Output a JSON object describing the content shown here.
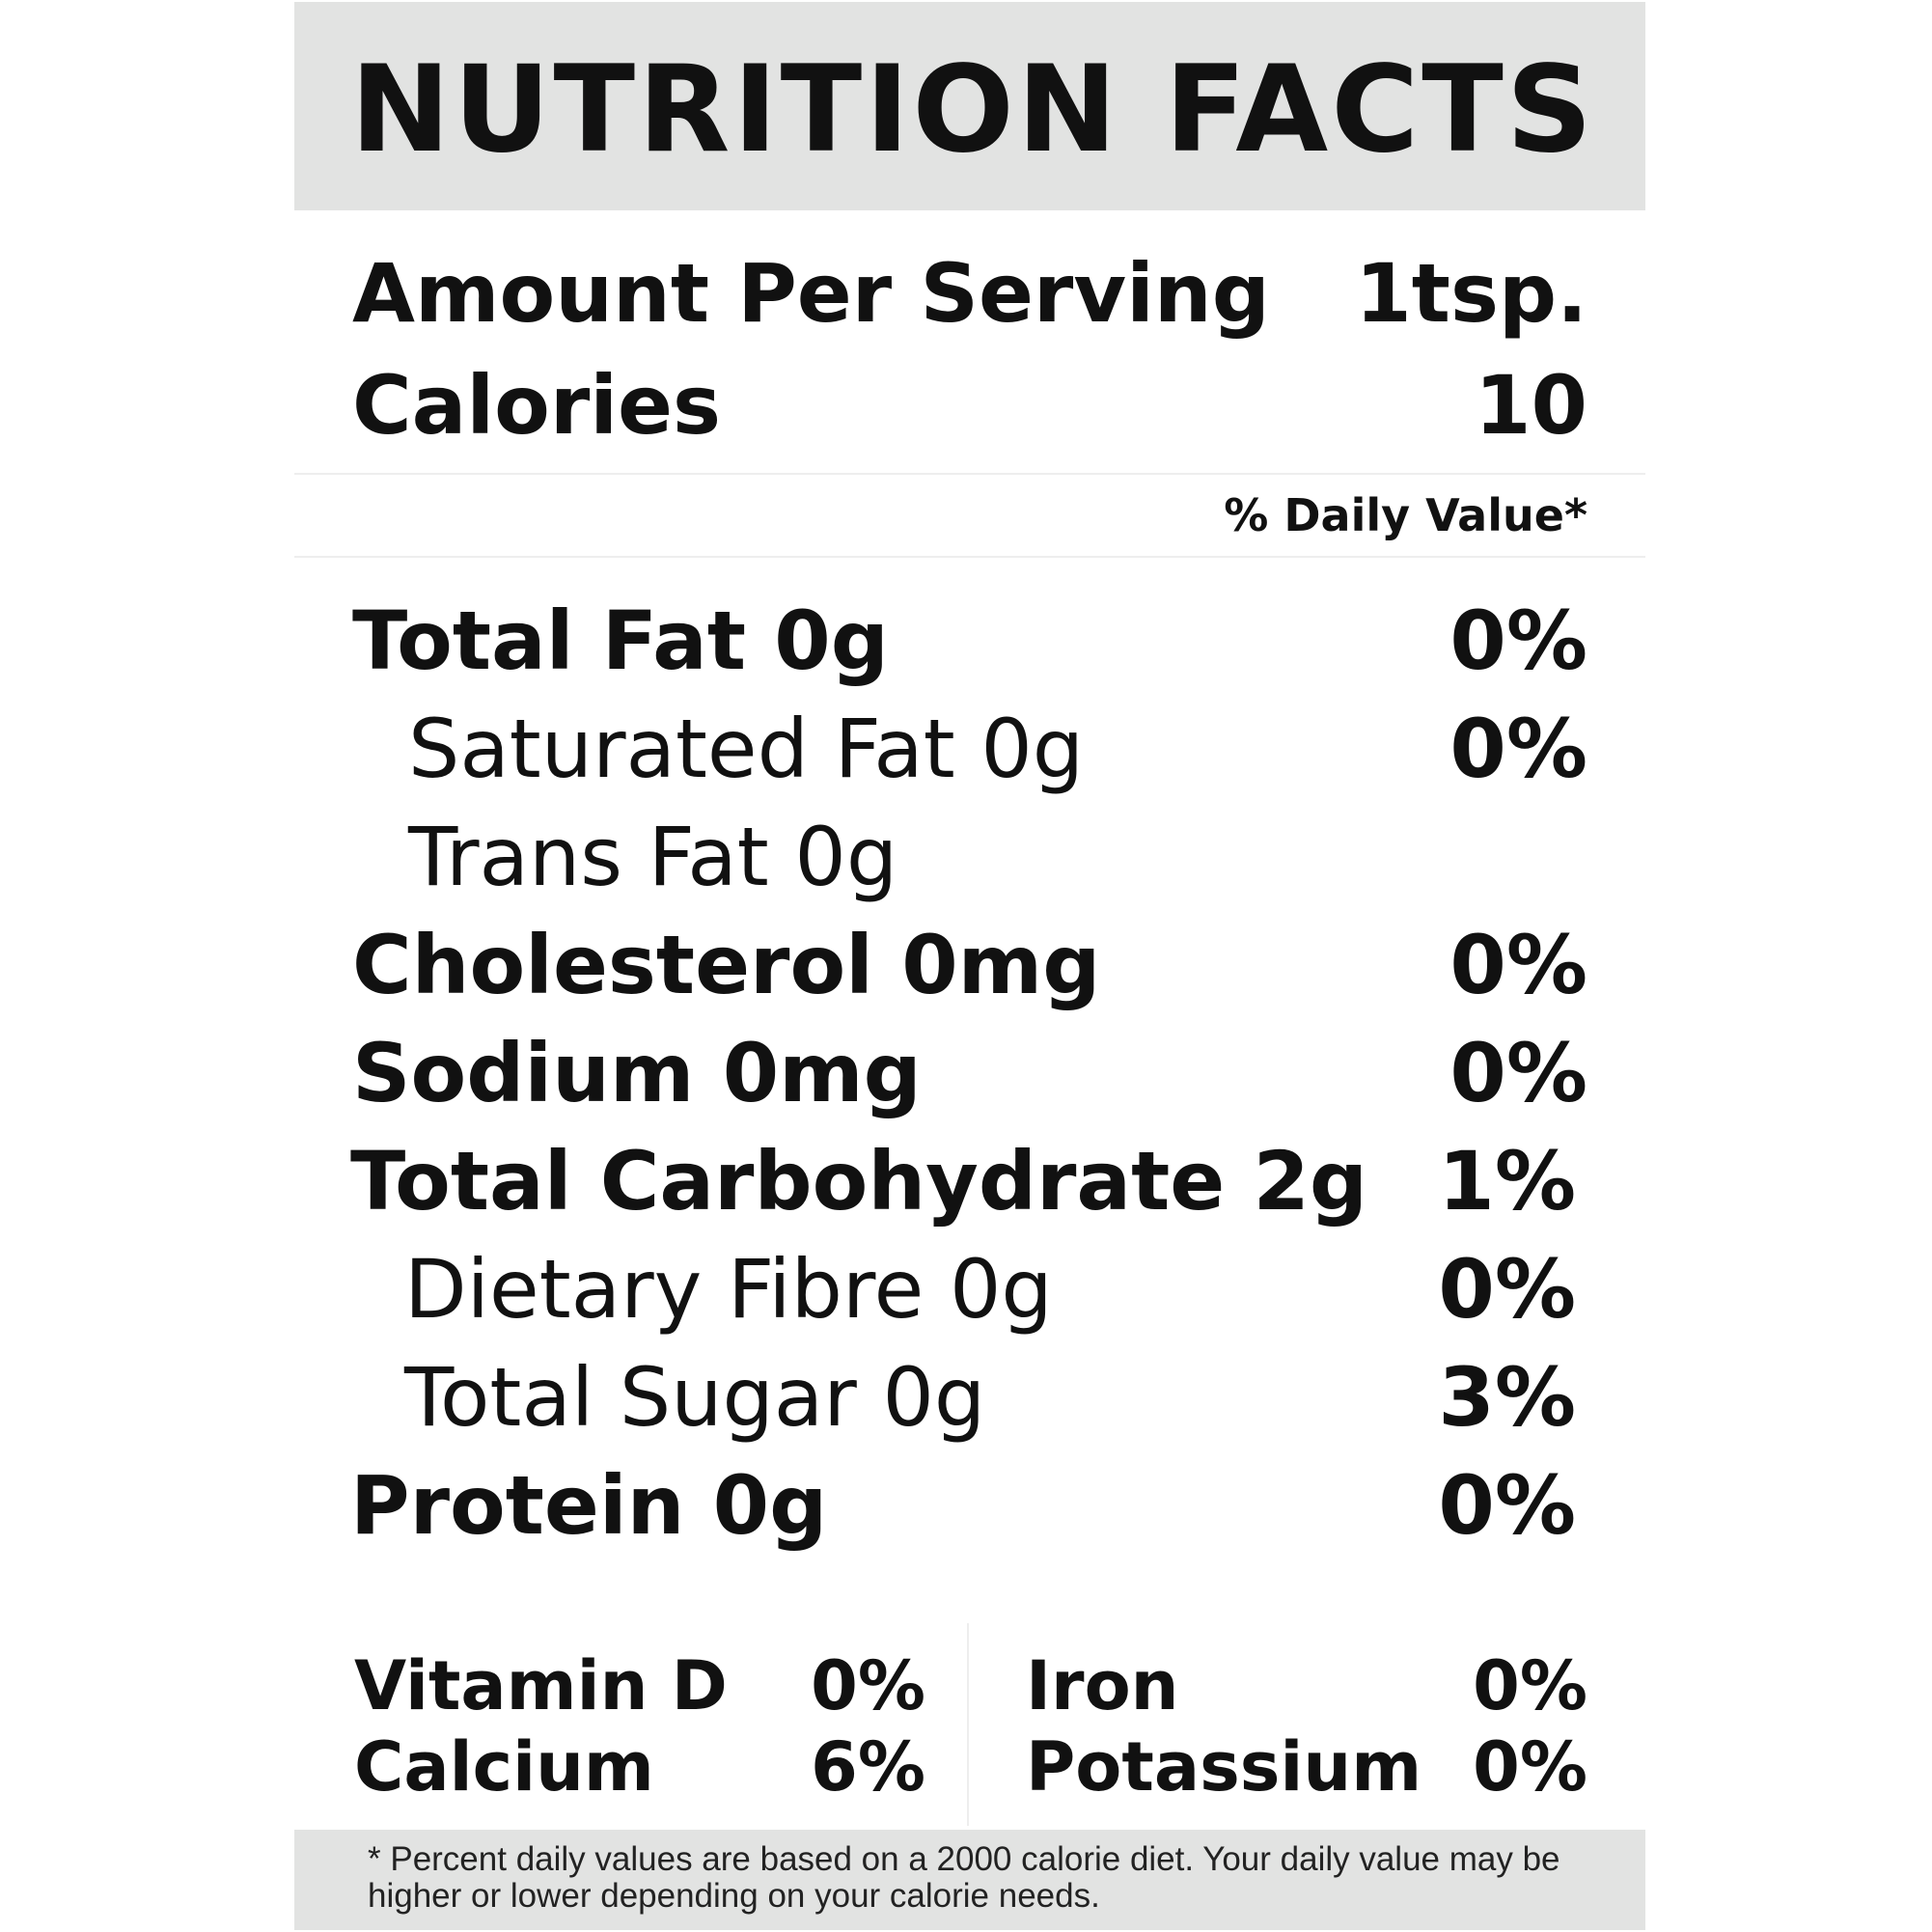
{
  "label": {
    "title": "NUTRITION FACTS",
    "serving_label": "Amount Per Serving",
    "serving_value": "1tsp.",
    "calories_label": "Calories",
    "calories_value": "10",
    "daily_value_header": "% Daily Value*",
    "nutrients": [
      {
        "name": "Total Fat 0g",
        "dv": "0%",
        "level": "main"
      },
      {
        "name": "Saturated Fat 0g",
        "dv": "0%",
        "level": "sub"
      },
      {
        "name": "Trans Fat 0g",
        "dv": "",
        "level": "sub"
      },
      {
        "name": "Cholesterol 0mg",
        "dv": "0%",
        "level": "main"
      },
      {
        "name": "Sodium 0mg",
        "dv": "0%",
        "level": "main"
      },
      {
        "name": "Total Carbohydrate 2g",
        "dv": "1%",
        "level": "main"
      },
      {
        "name": "Dietary Fibre 0g",
        "dv": "0%",
        "level": "sub"
      },
      {
        "name": "Total Sugar 0g",
        "dv": "3%",
        "level": "sub"
      },
      {
        "name": "Protein 0g",
        "dv": "0%",
        "level": "main"
      }
    ],
    "vitamins": [
      {
        "name": "Vitamin D",
        "dv": "0%"
      },
      {
        "name": "Iron",
        "dv": "0%"
      },
      {
        "name": "Calcium",
        "dv": "6%"
      },
      {
        "name": "Potassium",
        "dv": "0%"
      }
    ],
    "footnote": "* Percent daily values are based on a  2000 calorie diet. Your daily value may be higher or lower depending on your calorie needs."
  },
  "colors": {
    "header_band": "#e2e3e2",
    "text": "#111111"
  }
}
